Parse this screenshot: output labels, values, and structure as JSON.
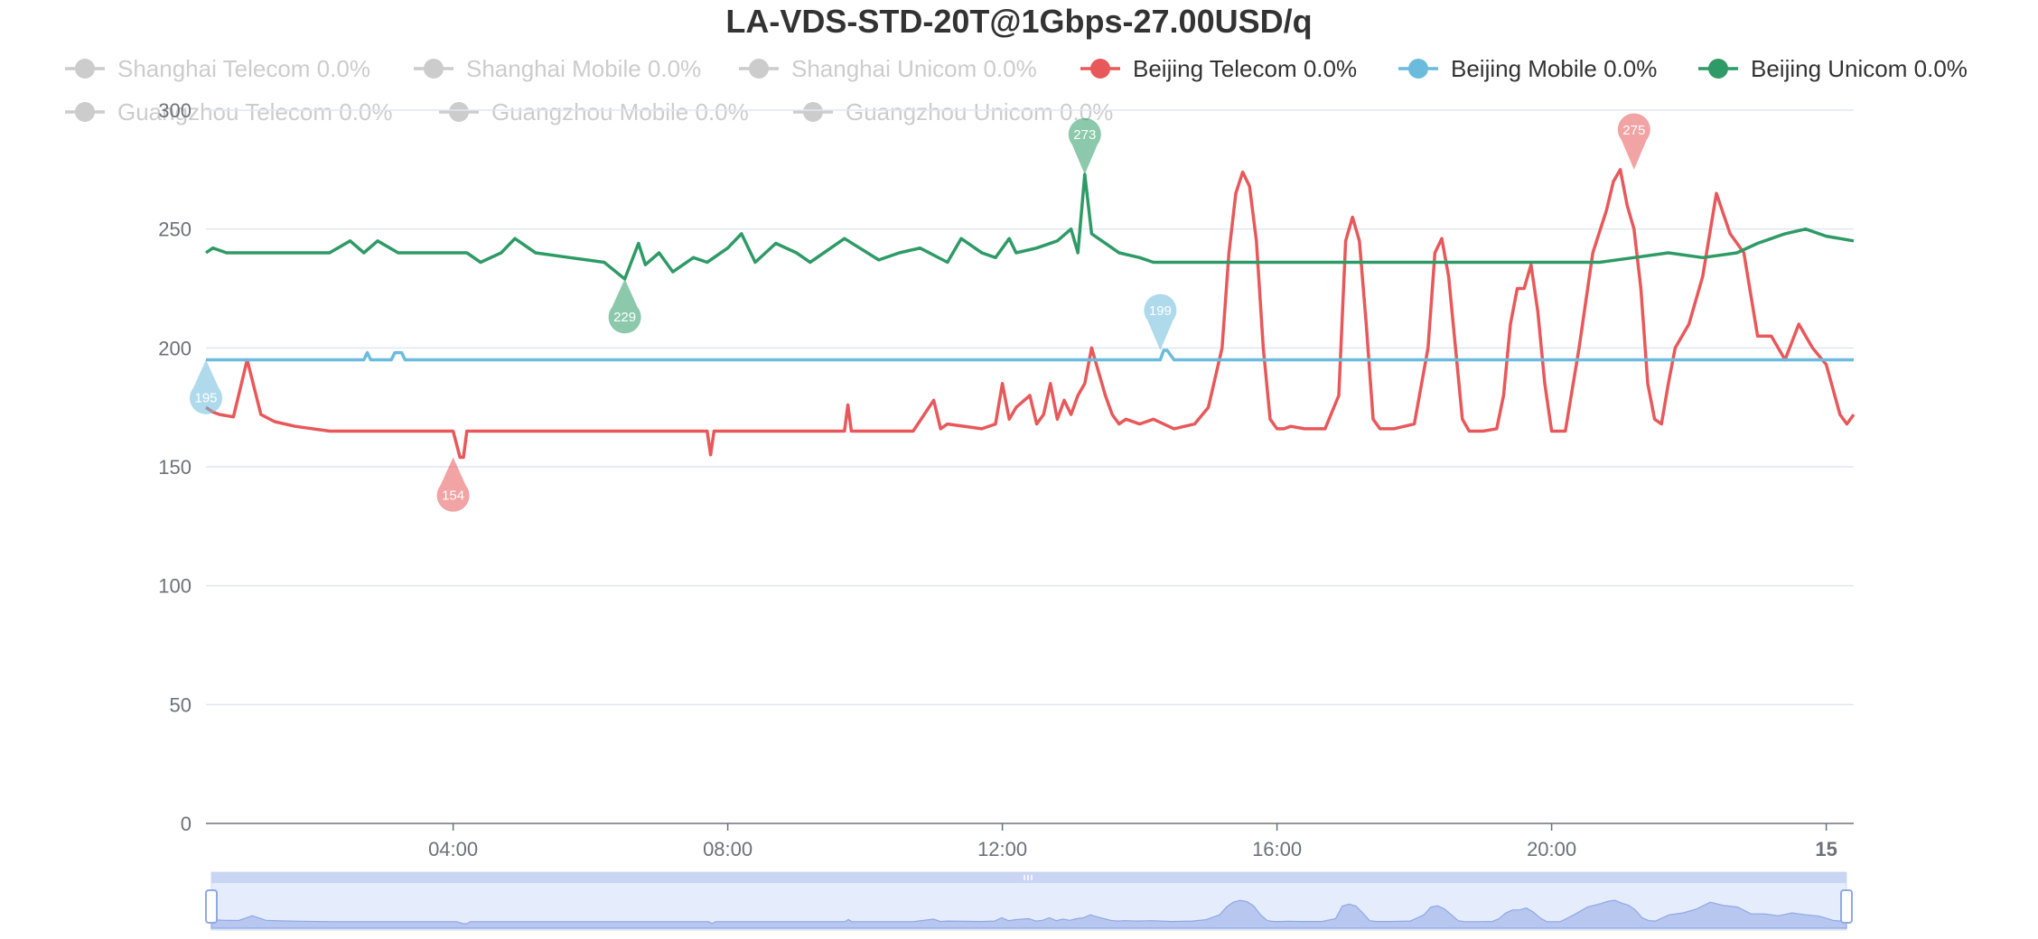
{
  "chart_data": {
    "type": "line",
    "title": "LA-VDS-STD-20T@1Gbps-27.00USD/q",
    "xlabel": "",
    "ylabel": "",
    "ylim": [
      0,
      300
    ],
    "yticks": [
      "0",
      "50",
      "100",
      "150",
      "200",
      "250",
      "300"
    ],
    "x_range_hours": [
      0.2,
      24.2
    ],
    "xticks": [
      {
        "h": 3.8,
        "label": "04:00",
        "bold": false
      },
      {
        "h": 7.8,
        "label": "08:00",
        "bold": false
      },
      {
        "h": 11.8,
        "label": "12:00",
        "bold": false
      },
      {
        "h": 15.8,
        "label": "16:00",
        "bold": false
      },
      {
        "h": 19.8,
        "label": "20:00",
        "bold": false
      },
      {
        "h": 23.8,
        "label": "15",
        "bold": true
      }
    ],
    "grid": true,
    "legend_position": "top",
    "legend": [
      {
        "label": "Shanghai Telecom 0.0%",
        "color": "#cccccc",
        "active": false
      },
      {
        "label": "Shanghai Mobile 0.0%",
        "color": "#cccccc",
        "active": false
      },
      {
        "label": "Shanghai Unicom 0.0%",
        "color": "#cccccc",
        "active": false
      },
      {
        "label": "Beijing Telecom 0.0%",
        "color": "#e8585a",
        "active": true
      },
      {
        "label": "Beijing Mobile 0.0%",
        "color": "#6bbbdc",
        "active": true
      },
      {
        "label": "Beijing Unicom 0.0%",
        "color": "#2e9a66",
        "active": true
      },
      {
        "label": "Guangzhou Telecom 0.0%",
        "color": "#cccccc",
        "active": false
      },
      {
        "label": "Guangzhou Mobile 0.0%",
        "color": "#cccccc",
        "active": false
      },
      {
        "label": "Guangzhou Unicom 0.0%",
        "color": "#cccccc",
        "active": false
      }
    ],
    "series": [
      {
        "name": "Beijing Telecom",
        "color": "#e8585a",
        "x": [
          0.2,
          0.3,
          0.4,
          0.6,
          0.8,
          1.0,
          1.2,
          1.5,
          2.0,
          3.0,
          3.6,
          3.8,
          3.9,
          3.95,
          4.0,
          5.0,
          6.0,
          7.0,
          7.5,
          7.55,
          7.6,
          8.0,
          9.0,
          9.5,
          9.55,
          9.6,
          10.0,
          10.5,
          10.8,
          10.9,
          11.0,
          11.5,
          11.7,
          11.8,
          11.9,
          12.0,
          12.2,
          12.3,
          12.4,
          12.5,
          12.6,
          12.7,
          12.8,
          12.9,
          13.0,
          13.1,
          13.2,
          13.3,
          13.4,
          13.5,
          13.6,
          13.8,
          14.0,
          14.3,
          14.6,
          14.8,
          15.0,
          15.1,
          15.2,
          15.3,
          15.4,
          15.5,
          15.6,
          15.7,
          15.8,
          15.9,
          16.0,
          16.2,
          16.5,
          16.7,
          16.8,
          16.9,
          17.0,
          17.1,
          17.2,
          17.3,
          17.5,
          17.8,
          18.0,
          18.1,
          18.2,
          18.3,
          18.4,
          18.5,
          18.6,
          18.8,
          19.0,
          19.1,
          19.2,
          19.3,
          19.4,
          19.5,
          19.6,
          19.7,
          19.8,
          19.9,
          20.0,
          20.2,
          20.4,
          20.6,
          20.7,
          20.8,
          20.9,
          21.0,
          21.1,
          21.2,
          21.3,
          21.4,
          21.5,
          21.6,
          21.8,
          22.0,
          22.2,
          22.4,
          22.6,
          22.8,
          23.0,
          23.2,
          23.4,
          23.6,
          23.8,
          24.0,
          24.1,
          24.2
        ],
        "values": [
          175,
          173,
          172,
          171,
          195,
          172,
          169,
          167,
          165,
          165,
          165,
          165,
          154,
          154,
          165,
          165,
          165,
          165,
          165,
          155,
          165,
          165,
          165,
          165,
          176,
          165,
          165,
          165,
          178,
          166,
          168,
          166,
          168,
          185,
          170,
          175,
          180,
          168,
          172,
          185,
          170,
          178,
          172,
          180,
          185,
          200,
          190,
          180,
          172,
          168,
          170,
          168,
          170,
          166,
          168,
          175,
          200,
          240,
          265,
          274,
          268,
          245,
          200,
          170,
          166,
          166,
          167,
          166,
          166,
          180,
          245,
          255,
          245,
          210,
          170,
          166,
          166,
          168,
          200,
          240,
          246,
          230,
          200,
          170,
          165,
          165,
          166,
          180,
          210,
          225,
          225,
          235,
          215,
          185,
          165,
          165,
          165,
          200,
          240,
          258,
          270,
          275,
          260,
          250,
          225,
          185,
          170,
          168,
          185,
          200,
          210,
          230,
          265,
          248,
          240,
          205,
          205,
          195,
          210,
          200,
          193,
          172,
          168,
          172
        ]
      },
      {
        "name": "Beijing Mobile",
        "color": "#6bbbdc",
        "x": [
          0.2,
          2.5,
          2.55,
          2.6,
          2.9,
          2.95,
          3.05,
          3.1,
          14.1,
          14.15,
          14.2,
          14.3,
          24.2
        ],
        "values": [
          195,
          195,
          198,
          195,
          195,
          198,
          198,
          195,
          195,
          199,
          199,
          195,
          195
        ]
      },
      {
        "name": "Beijing Unicom",
        "color": "#2e9a66",
        "x": [
          0.2,
          0.3,
          0.5,
          0.8,
          1.0,
          1.5,
          2.0,
          2.3,
          2.5,
          2.7,
          3.0,
          3.5,
          3.8,
          3.9,
          4.0,
          4.2,
          4.5,
          4.7,
          5.0,
          5.5,
          6.0,
          6.3,
          6.5,
          6.6,
          6.8,
          7.0,
          7.3,
          7.5,
          7.8,
          8.0,
          8.2,
          8.5,
          8.8,
          9.0,
          9.5,
          10.0,
          10.3,
          10.6,
          11.0,
          11.2,
          11.5,
          11.7,
          11.9,
          12.0,
          12.3,
          12.6,
          12.8,
          12.9,
          13.0,
          13.1,
          13.2,
          13.5,
          13.8,
          14.0,
          14.5,
          15.0,
          15.5,
          16.0,
          17.0,
          18.0,
          19.0,
          20.0,
          20.5,
          21.0,
          21.5,
          22.0,
          22.5,
          22.8,
          23.0,
          23.2,
          23.5,
          23.8,
          24.0,
          24.2
        ],
        "values": [
          240,
          242,
          240,
          240,
          240,
          240,
          240,
          245,
          240,
          245,
          240,
          240,
          240,
          240,
          240,
          236,
          240,
          246,
          240,
          238,
          236,
          229,
          244,
          235,
          240,
          232,
          238,
          236,
          242,
          248,
          236,
          244,
          240,
          236,
          246,
          237,
          240,
          242,
          236,
          246,
          240,
          238,
          246,
          240,
          242,
          245,
          250,
          240,
          273,
          248,
          246,
          240,
          238,
          236,
          236,
          236,
          236,
          236,
          236,
          236,
          236,
          236,
          236,
          238,
          240,
          238,
          240,
          244,
          246,
          248,
          250,
          247,
          246,
          245
        ]
      }
    ],
    "markers": [
      {
        "series": "Beijing Telecom",
        "label": "275",
        "x": 21.0,
        "y": 275
      },
      {
        "series": "Beijing Telecom",
        "label": "154",
        "x": 3.8,
        "y": 154
      },
      {
        "series": "Beijing Mobile",
        "label": "199",
        "x": 14.1,
        "y": 199
      },
      {
        "series": "Beijing Mobile",
        "label": "195",
        "x": 0.2,
        "y": 195
      },
      {
        "series": "Beijing Unicom",
        "label": "273",
        "x": 13.0,
        "y": 273
      },
      {
        "series": "Beijing Unicom",
        "label": "229",
        "x": 6.3,
        "y": 229
      }
    ],
    "datazoom": {
      "start": 0,
      "end": 100
    }
  }
}
